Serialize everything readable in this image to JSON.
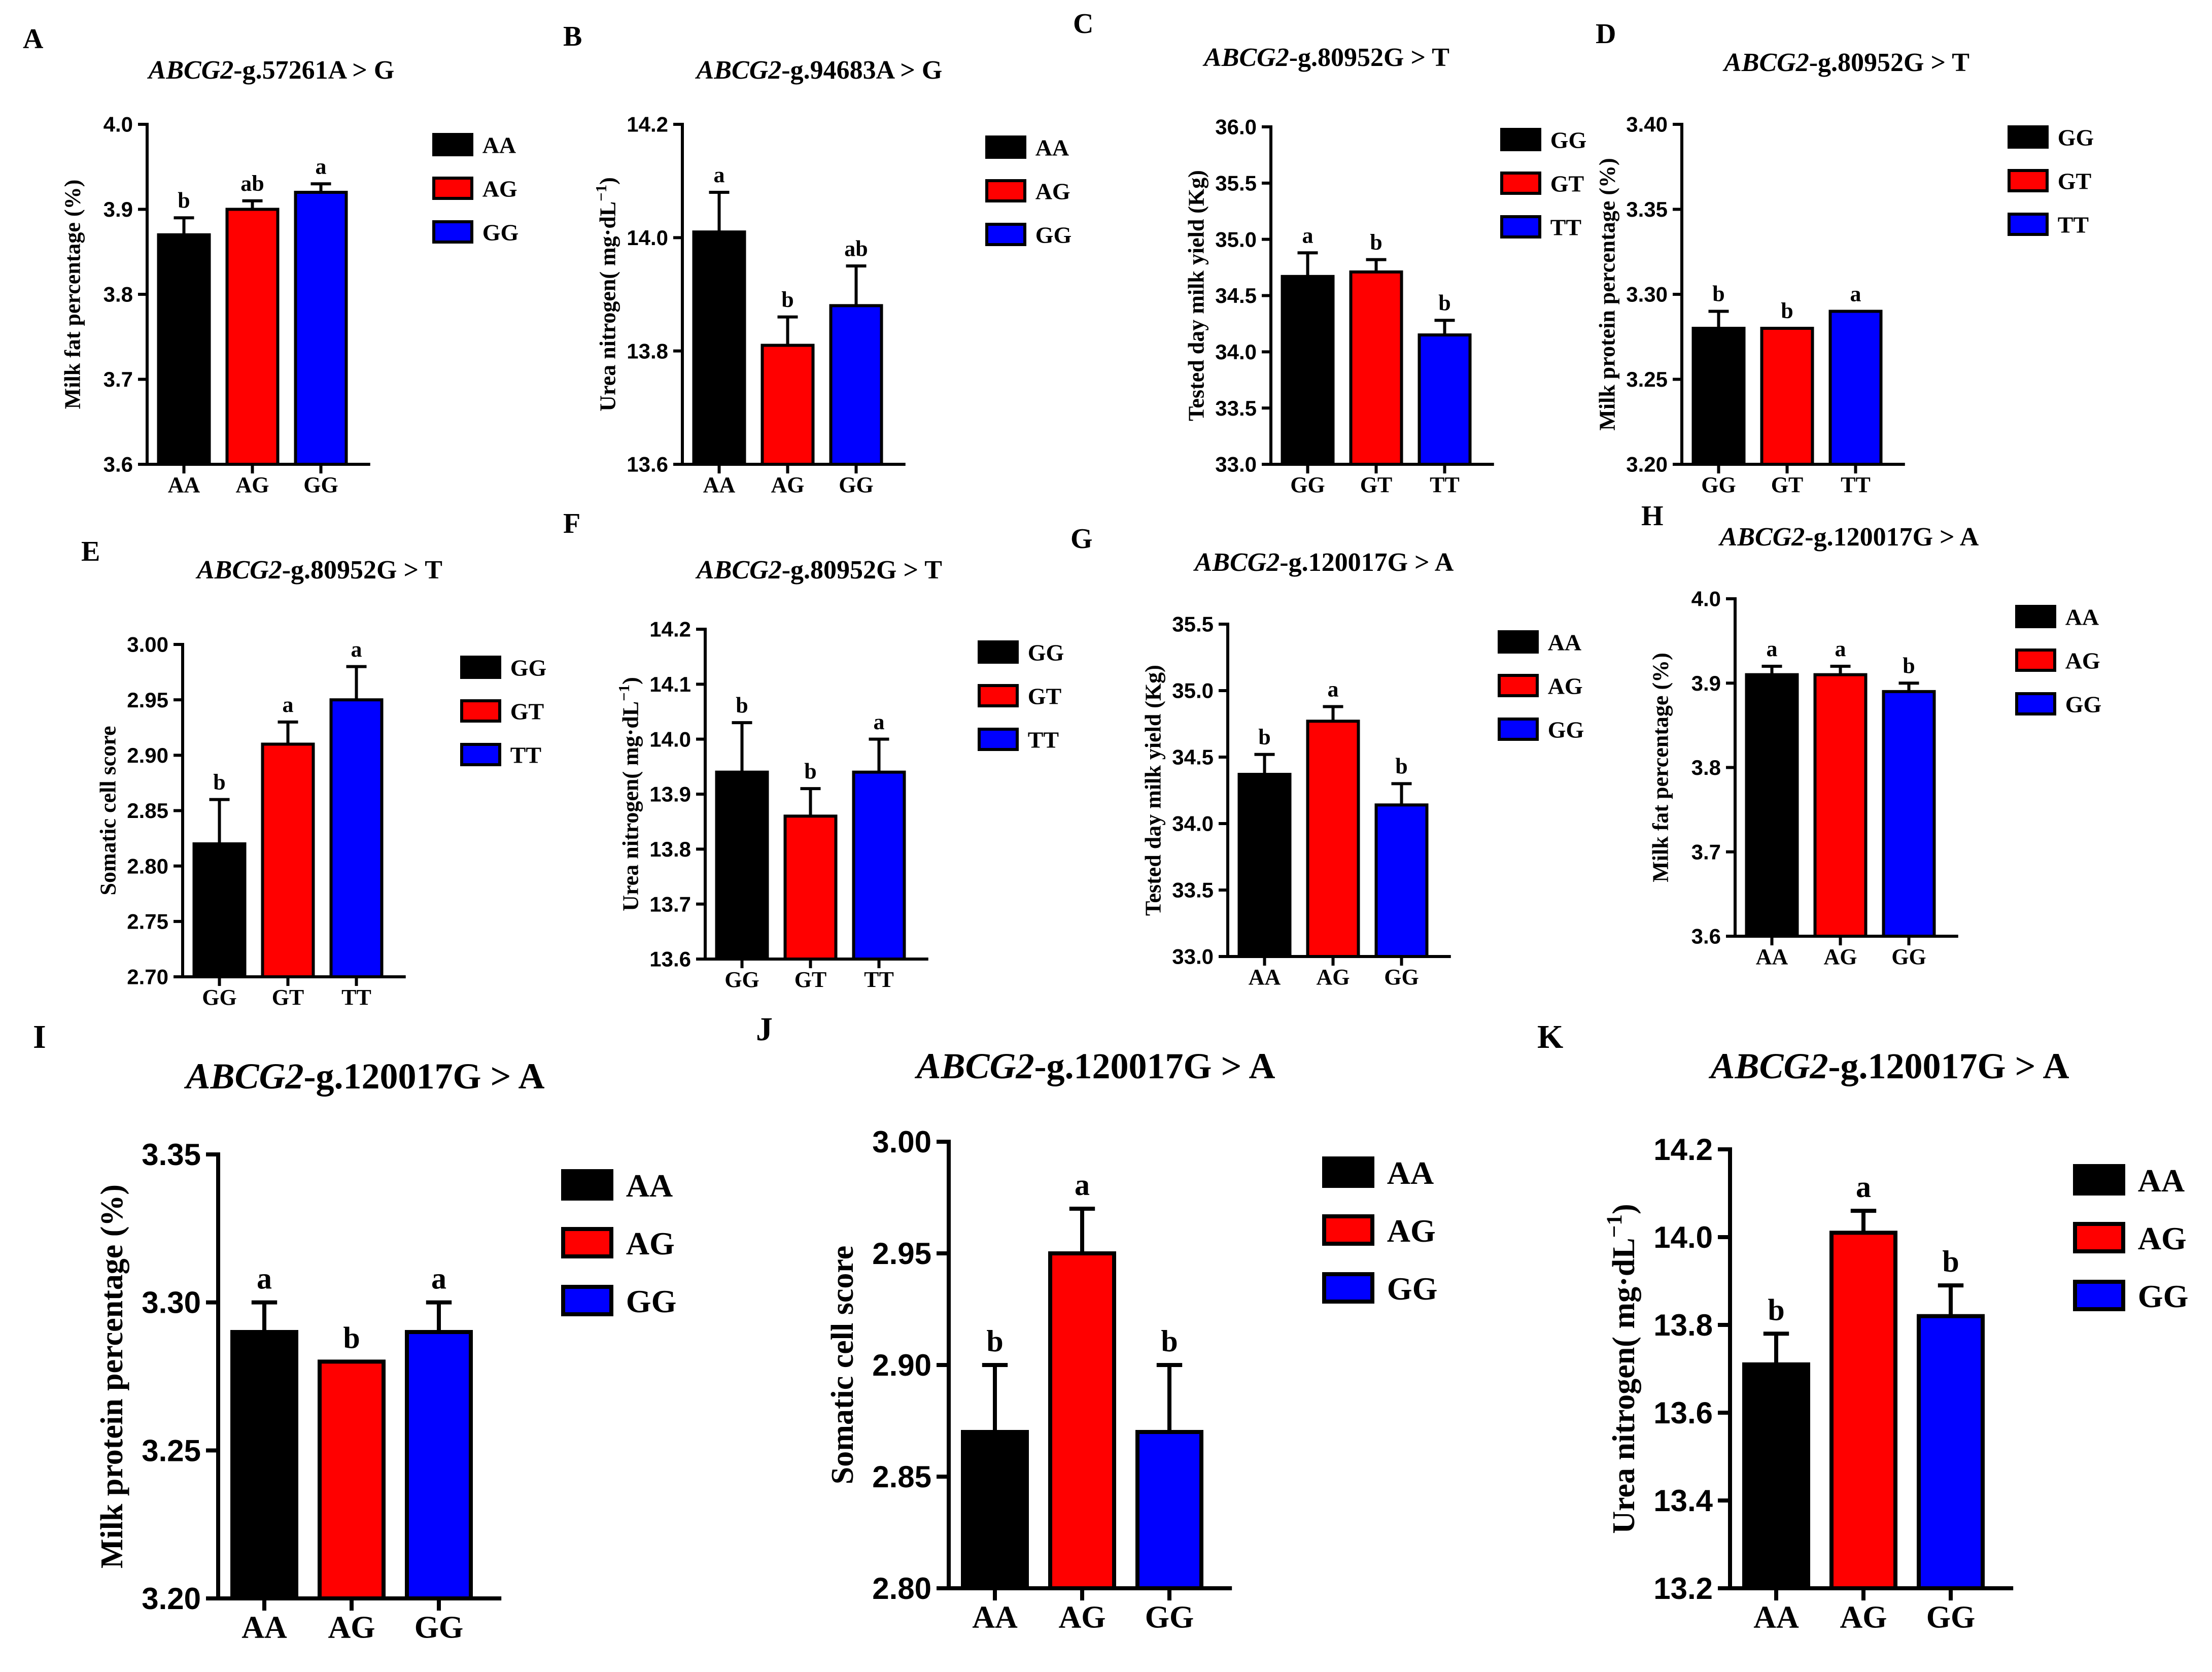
{
  "colors": {
    "AA_or_GG_first": "#000000",
    "second": "#ff0000",
    "third": "#0000ff",
    "axis": "#000000"
  },
  "chart_data": [
    {
      "panel": "A",
      "type": "bar",
      "title": {
        "gene": "ABCG2",
        "variant": "-g.57261A > G"
      },
      "ylabel": "Milk fat percentage (%)",
      "categories": [
        "AA",
        "AG",
        "GG"
      ],
      "values": [
        3.87,
        3.9,
        3.92
      ],
      "errors": [
        0.02,
        0.01,
        0.01
      ],
      "significance": [
        "b",
        "ab",
        "a"
      ],
      "ylim": [
        3.6,
        4.0
      ],
      "yticks": [
        "3.6",
        "3.7",
        "3.8",
        "3.9",
        "4.0"
      ],
      "legend": [
        "AA",
        "AG",
        "GG"
      ]
    },
    {
      "panel": "B",
      "type": "bar",
      "title": {
        "gene": "ABCG2",
        "variant": "-g.94683A > G"
      },
      "ylabel": "Urea nitrogen( mg·dL",
      "ylabel_sup": "−1",
      "ylabel_tail": ")",
      "categories": [
        "AA",
        "AG",
        "GG"
      ],
      "values": [
        14.01,
        13.81,
        13.88
      ],
      "errors": [
        0.07,
        0.05,
        0.07
      ],
      "significance": [
        "a",
        "b",
        "ab"
      ],
      "ylim": [
        13.6,
        14.2
      ],
      "yticks": [
        "13.6",
        "13.8",
        "14.0",
        "14.2"
      ],
      "legend": [
        "AA",
        "AG",
        "GG"
      ]
    },
    {
      "panel": "C",
      "type": "bar",
      "title": {
        "gene": "ABCG2",
        "variant": "-g.80952G > T"
      },
      "ylabel": "Tested day milk yield (Kg)",
      "categories": [
        "GG",
        "GT",
        "TT"
      ],
      "values": [
        34.67,
        34.71,
        34.15
      ],
      "errors": [
        0.21,
        0.11,
        0.13
      ],
      "significance": [
        "a",
        "b",
        "b"
      ],
      "ylim": [
        33.0,
        36.0
      ],
      "yticks": [
        "33.0",
        "33.5",
        "34.0",
        "34.5",
        "35.0",
        "35.5",
        "36.0"
      ],
      "legend": [
        "GG",
        "GT",
        "TT"
      ]
    },
    {
      "panel": "D",
      "type": "bar",
      "title": {
        "gene": "ABCG2",
        "variant": "-g.80952G > T"
      },
      "ylabel": "Milk protein percentage (%)",
      "categories": [
        "GG",
        "GT",
        "TT"
      ],
      "values": [
        3.28,
        3.28,
        3.29
      ],
      "errors": [
        0.01,
        0.0,
        0.0
      ],
      "significance": [
        "b",
        "b",
        "a"
      ],
      "ylim": [
        3.2,
        3.4
      ],
      "yticks": [
        "3.20",
        "3.25",
        "3.30",
        "3.35",
        "3.40"
      ],
      "legend": [
        "GG",
        "GT",
        "TT"
      ]
    },
    {
      "panel": "E",
      "type": "bar",
      "title": {
        "gene": "ABCG2",
        "variant": "-g.80952G > T"
      },
      "ylabel": "Somatic cell score",
      "categories": [
        "GG",
        "GT",
        "TT"
      ],
      "values": [
        2.82,
        2.91,
        2.95
      ],
      "errors": [
        0.04,
        0.02,
        0.03
      ],
      "significance": [
        "b",
        "a",
        "a"
      ],
      "ylim": [
        2.7,
        3.0
      ],
      "yticks": [
        "2.70",
        "2.75",
        "2.80",
        "2.85",
        "2.90",
        "2.95",
        "3.00"
      ],
      "legend": [
        "GG",
        "GT",
        "TT"
      ]
    },
    {
      "panel": "F",
      "type": "bar",
      "title": {
        "gene": "ABCG2",
        "variant": "-g.80952G > T"
      },
      "ylabel": "Urea nitrogen( mg·dL",
      "ylabel_sup": "−1",
      "ylabel_tail": ")",
      "categories": [
        "GG",
        "GT",
        "TT"
      ],
      "values": [
        13.94,
        13.86,
        13.94
      ],
      "errors": [
        0.09,
        0.05,
        0.06
      ],
      "significance": [
        "b",
        "b",
        "a"
      ],
      "ylim": [
        13.6,
        14.2
      ],
      "yticks": [
        "13.6",
        "13.7",
        "13.8",
        "13.9",
        "14.0",
        "14.1",
        "14.2"
      ],
      "legend": [
        "GG",
        "GT",
        "TT"
      ]
    },
    {
      "panel": "G",
      "type": "bar",
      "title": {
        "gene": "ABCG2",
        "variant": "-g.120017G > A"
      },
      "ylabel": "Tested day milk yield (Kg)",
      "categories": [
        "AA",
        "AG",
        "GG"
      ],
      "values": [
        34.37,
        34.77,
        34.14
      ],
      "errors": [
        0.15,
        0.11,
        0.16
      ],
      "significance": [
        "b",
        "a",
        "b"
      ],
      "ylim": [
        33.0,
        35.5
      ],
      "yticks": [
        "33.0",
        "33.5",
        "34.0",
        "34.5",
        "35.0",
        "35.5"
      ],
      "legend": [
        "AA",
        "AG",
        "GG"
      ]
    },
    {
      "panel": "H",
      "type": "bar",
      "title": {
        "gene": "ABCG2",
        "variant": "-g.120017G > A"
      },
      "ylabel": "Milk fat percentage (%)",
      "categories": [
        "AA",
        "AG",
        "GG"
      ],
      "values": [
        3.91,
        3.91,
        3.89
      ],
      "errors": [
        0.01,
        0.01,
        0.01
      ],
      "significance": [
        "a",
        "a",
        "b"
      ],
      "ylim": [
        3.6,
        4.0
      ],
      "yticks": [
        "3.6",
        "3.7",
        "3.8",
        "3.9",
        "4.0"
      ],
      "legend": [
        "AA",
        "AG",
        "GG"
      ]
    },
    {
      "panel": "I",
      "type": "bar",
      "title": {
        "gene": "ABCG2",
        "variant": "-g.120017G > A"
      },
      "ylabel": "Milk protein percentage (%)",
      "categories": [
        "AA",
        "AG",
        "GG"
      ],
      "values": [
        3.29,
        3.28,
        3.29
      ],
      "errors": [
        0.01,
        0.0,
        0.01
      ],
      "significance": [
        "a",
        "b",
        "a"
      ],
      "ylim": [
        3.2,
        3.35
      ],
      "yticks": [
        "3.20",
        "3.25",
        "3.30",
        "3.35"
      ],
      "legend": [
        "AA",
        "AG",
        "GG"
      ]
    },
    {
      "panel": "J",
      "type": "bar",
      "title": {
        "gene": "ABCG2",
        "variant": "-g.120017G > A"
      },
      "ylabel": "Somatic cell score",
      "categories": [
        "AA",
        "AG",
        "GG"
      ],
      "values": [
        2.87,
        2.95,
        2.87
      ],
      "errors": [
        0.03,
        0.02,
        0.03
      ],
      "significance": [
        "b",
        "a",
        "b"
      ],
      "ylim": [
        2.8,
        3.0
      ],
      "yticks": [
        "2.80",
        "2.85",
        "2.90",
        "2.95",
        "3.00"
      ],
      "legend": [
        "AA",
        "AG",
        "GG"
      ]
    },
    {
      "panel": "K",
      "type": "bar",
      "title": {
        "gene": "ABCG2",
        "variant": "-g.120017G > A"
      },
      "ylabel": "Urea nitrogen( mg·dL",
      "ylabel_sup": "−1",
      "ylabel_tail": ")",
      "categories": [
        "AA",
        "AG",
        "GG"
      ],
      "values": [
        13.71,
        14.01,
        13.82
      ],
      "errors": [
        0.07,
        0.05,
        0.07
      ],
      "significance": [
        "b",
        "a",
        "b"
      ],
      "ylim": [
        13.2,
        14.2
      ],
      "yticks": [
        "13.2",
        "13.4",
        "13.6",
        "13.8",
        "14.0",
        "14.2"
      ],
      "legend": [
        "AA",
        "AG",
        "GG"
      ]
    }
  ]
}
